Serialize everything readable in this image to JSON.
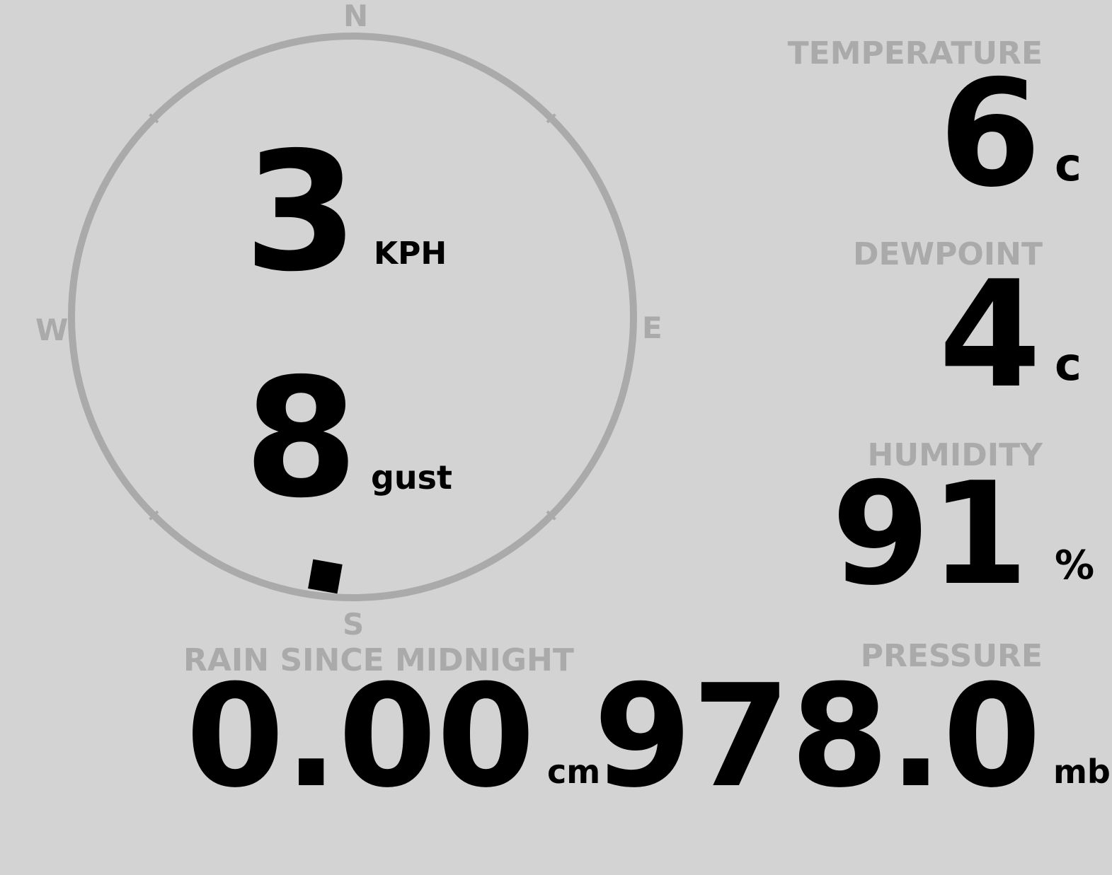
{
  "colors": {
    "background": "#d3d3d3",
    "label": "#aaaaaa",
    "value": "#000000",
    "compass_ring": "#aaaaaa"
  },
  "wind": {
    "compass": {
      "n": "N",
      "e": "E",
      "s": "S",
      "w": "W"
    },
    "direction_deg": 186,
    "speed": "3",
    "speed_unit": "KPH",
    "gust": "8",
    "gust_unit": "gust"
  },
  "temperature": {
    "label": "TEMPERATURE",
    "value": "6",
    "unit": "c"
  },
  "dewpoint": {
    "label": "DEWPOINT",
    "value": "4",
    "unit": "c"
  },
  "humidity": {
    "label": "HUMIDITY",
    "value": "91",
    "unit": "%"
  },
  "rain": {
    "label": "RAIN SINCE MIDNIGHT",
    "value": "0.00",
    "unit": "cm"
  },
  "pressure": {
    "label": "PRESSURE",
    "value": "978.0",
    "unit": "mb"
  }
}
